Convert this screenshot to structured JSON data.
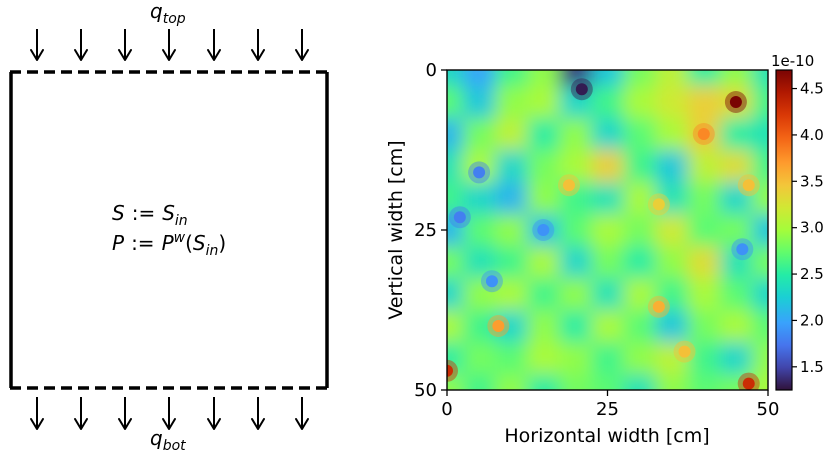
{
  "schematic": {
    "flux_top": {
      "symbol": "q",
      "subscript": "top"
    },
    "flux_bottom": {
      "symbol": "q",
      "subscript": "bot"
    },
    "initial_saturation": {
      "lhs": "S",
      "op": ":=",
      "rhs": "S",
      "rhs_sub": "in"
    },
    "initial_pressure": {
      "lhs": "P",
      "op": ":=",
      "rhs": "P",
      "rhs_sup": "w",
      "arg": "S",
      "arg_sub": "in"
    },
    "top_arrow_count": 7,
    "bottom_arrow_count": 7,
    "boundary_style": {
      "top": "dashed",
      "bottom": "dashed",
      "left": "solid",
      "right": "solid"
    }
  },
  "heatmap": {
    "xlabel": "Horizontal width [cm]",
    "ylabel": "Vertical width [cm]",
    "x_ticks": [
      "0",
      "25",
      "50"
    ],
    "y_ticks": [
      "0",
      "25",
      "50"
    ],
    "xlim": [
      0,
      50
    ],
    "ylim": [
      50,
      0
    ],
    "colormap": "turbo"
  },
  "colorbar": {
    "offset_text": "1e-10",
    "ticks": [
      "1.5",
      "2.0",
      "2.5",
      "3.0",
      "3.5",
      "4.0",
      "4.5"
    ],
    "tick_values": [
      1.5,
      2.0,
      2.5,
      3.0,
      3.5,
      4.0,
      4.5
    ],
    "range": [
      1.25,
      4.7
    ]
  },
  "chart_data": {
    "type": "heatmap",
    "title": "",
    "xlabel": "Horizontal width [cm]",
    "ylabel": "Vertical width [cm]",
    "xlim": [
      0,
      50
    ],
    "ylim": [
      50,
      0
    ],
    "color_scale": "turbo",
    "color_range": [
      1.25e-10,
      4.7e-10
    ],
    "colorbar_label": "1e-10",
    "grid_x_step_cm": 5,
    "grid_y_step_cm": 5,
    "values_1e-10": [
      [
        2.3,
        2.0,
        2.6,
        2.9,
        1.4,
        2.2,
        2.8,
        3.1,
        2.5,
        2.9,
        2.4
      ],
      [
        2.7,
        2.2,
        2.9,
        3.0,
        2.3,
        2.6,
        3.0,
        3.2,
        3.4,
        3.3,
        2.6
      ],
      [
        2.1,
        2.8,
        3.1,
        2.5,
        2.9,
        2.3,
        2.7,
        3.0,
        3.4,
        2.5,
        2.4
      ],
      [
        2.4,
        3.0,
        2.3,
        2.8,
        3.0,
        3.4,
        2.6,
        2.2,
        3.1,
        3.3,
        2.6
      ],
      [
        2.6,
        2.3,
        2.1,
        2.9,
        2.6,
        2.4,
        3.0,
        2.4,
        2.8,
        2.3,
        2.9
      ],
      [
        2.1,
        2.7,
        2.9,
        2.2,
        2.7,
        3.0,
        2.8,
        3.2,
        2.7,
        2.8,
        2.2
      ],
      [
        2.8,
        2.4,
        2.6,
        3.0,
        2.3,
        2.8,
        2.5,
        2.9,
        3.3,
        2.4,
        2.8
      ],
      [
        2.3,
        2.9,
        3.0,
        2.6,
        2.9,
        2.4,
        3.0,
        2.6,
        3.0,
        2.7,
        2.3
      ],
      [
        3.0,
        2.6,
        2.3,
        2.9,
        2.5,
        3.0,
        2.7,
        2.2,
        2.8,
        3.0,
        2.7
      ],
      [
        2.5,
        2.8,
        2.7,
        3.0,
        2.9,
        2.6,
        2.9,
        3.1,
        2.6,
        2.3,
        2.9
      ],
      [
        2.9,
        2.6,
        2.9,
        2.5,
        2.8,
        2.7,
        2.4,
        2.9,
        2.7,
        2.8,
        3.0
      ]
    ],
    "hot_spots": [
      {
        "x": 45,
        "y": 5,
        "value_1e-10": 4.7
      },
      {
        "x": 0,
        "y": 47,
        "value_1e-10": 4.3
      },
      {
        "x": 47,
        "y": 49,
        "value_1e-10": 4.3
      },
      {
        "x": 40,
        "y": 10,
        "value_1e-10": 3.8
      },
      {
        "x": 8,
        "y": 40,
        "value_1e-10": 3.7
      },
      {
        "x": 33,
        "y": 37,
        "value_1e-10": 3.6
      },
      {
        "x": 19,
        "y": 18,
        "value_1e-10": 3.5
      },
      {
        "x": 47,
        "y": 18,
        "value_1e-10": 3.5
      },
      {
        "x": 37,
        "y": 44,
        "value_1e-10": 3.5
      },
      {
        "x": 33,
        "y": 21,
        "value_1e-10": 3.4
      }
    ],
    "cold_spots": [
      {
        "x": 21,
        "y": 3,
        "value_1e-10": 1.3
      },
      {
        "x": 5,
        "y": 16,
        "value_1e-10": 1.8
      },
      {
        "x": 2,
        "y": 23,
        "value_1e-10": 1.8
      },
      {
        "x": 15,
        "y": 25,
        "value_1e-10": 1.9
      },
      {
        "x": 46,
        "y": 28,
        "value_1e-10": 1.9
      },
      {
        "x": 7,
        "y": 33,
        "value_1e-10": 1.9
      }
    ]
  }
}
